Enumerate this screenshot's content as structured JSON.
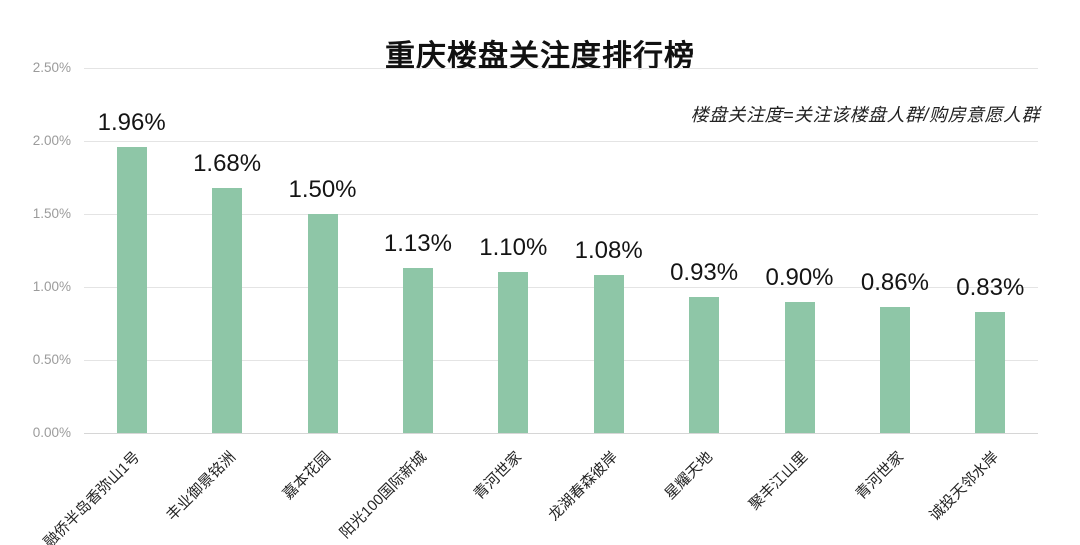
{
  "chart_data": {
    "type": "bar",
    "title": "重庆楼盘关注度排行榜",
    "subtitle": "楼盘关注度=关注该楼盘人群/购房意愿人群",
    "categories": [
      "融侨半岛香弥山1号",
      "丰业御景铭洲",
      "嘉本花园",
      "阳光100国际新城",
      "青河世家",
      "龙湖春森彼岸",
      "星耀天地",
      "聚丰江山里",
      "青河世家",
      "诚投天邻水岸"
    ],
    "values": [
      1.96,
      1.68,
      1.5,
      1.13,
      1.1,
      1.08,
      0.93,
      0.9,
      0.86,
      0.83
    ],
    "value_labels": [
      "1.96%",
      "1.68%",
      "1.50%",
      "1.13%",
      "1.10%",
      "1.08%",
      "0.93%",
      "0.90%",
      "0.86%",
      "0.83%"
    ],
    "xlabel": "",
    "ylabel": "",
    "ylim": [
      0,
      2.5
    ],
    "y_ticks": [
      "2.50%",
      "2.00%",
      "1.50%",
      "1.00%",
      "0.50%",
      "0.00%"
    ],
    "y_tick_values": [
      2.5,
      2.0,
      1.5,
      1.0,
      0.5,
      0.0
    ],
    "grid": true,
    "legend_position": "none",
    "bar_color": "#8ec6a7",
    "background_color": "#ffffff"
  }
}
